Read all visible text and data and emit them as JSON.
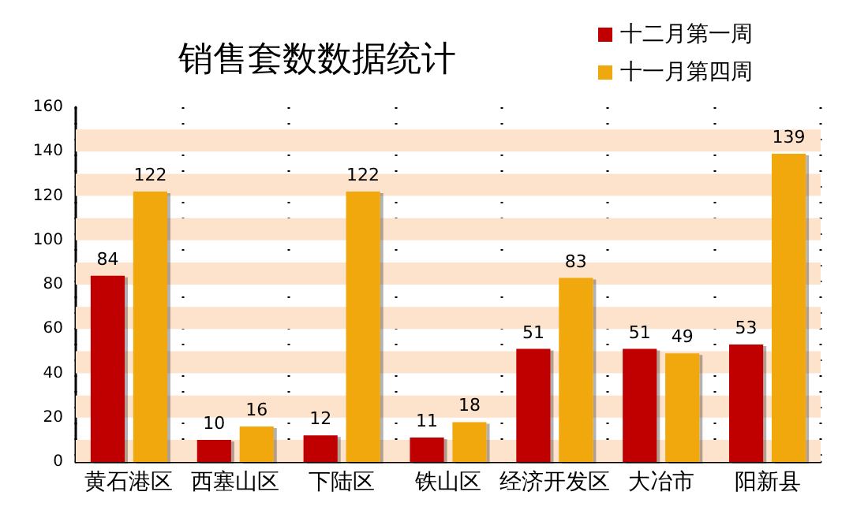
{
  "chart_data": {
    "type": "bar",
    "title": "销售套数数据统计",
    "categories": [
      "黄石港区",
      "西塞山区",
      "下陆区",
      "铁山区",
      "经济开发区",
      "大冶市",
      "阳新县"
    ],
    "series": [
      {
        "name": "十二月第一周",
        "color": "#c00000",
        "values": [
          84,
          10,
          12,
          11,
          51,
          51,
          53
        ]
      },
      {
        "name": "十一月第四周",
        "color": "#f0a80f",
        "values": [
          122,
          16,
          122,
          18,
          83,
          49,
          139
        ]
      }
    ],
    "ylim": [
      0,
      160
    ],
    "yticks": [
      0,
      20,
      40,
      60,
      80,
      100,
      120,
      140,
      160
    ],
    "data_labels": true,
    "grid": "x",
    "legend": "top right",
    "bands": [
      {
        "axis": "y",
        "from": 0,
        "to": 10,
        "color": "#fde3cc"
      },
      {
        "axis": "y",
        "from": 20,
        "to": 30,
        "color": "#fde3cc"
      },
      {
        "axis": "y",
        "from": 40,
        "to": 50,
        "color": "#fde3cc"
      },
      {
        "axis": "y",
        "from": 60,
        "to": 70,
        "color": "#fde3cc"
      },
      {
        "axis": "y",
        "from": 80,
        "to": 90,
        "color": "#fde3cc"
      },
      {
        "axis": "y",
        "from": 100,
        "to": 110,
        "color": "#fde3cc"
      },
      {
        "axis": "y",
        "from": 120,
        "to": 130,
        "color": "#fde3cc"
      },
      {
        "axis": "y",
        "from": 140,
        "to": 150,
        "color": "#fde3cc"
      }
    ]
  }
}
